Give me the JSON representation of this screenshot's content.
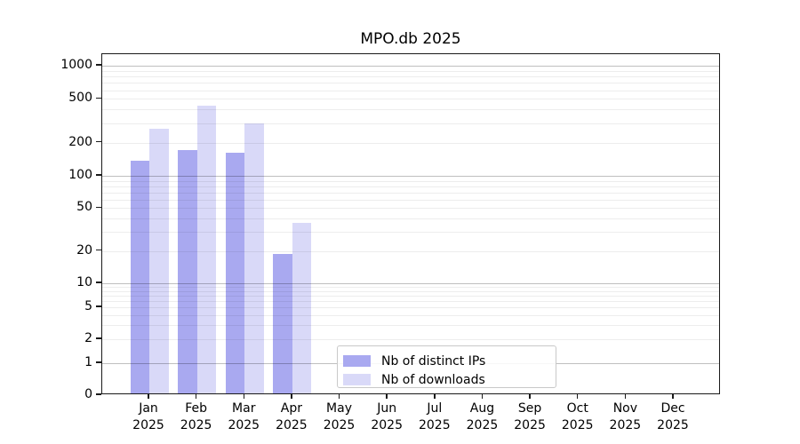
{
  "chart_data": {
    "type": "bar",
    "title": "MPO.db 2025",
    "x_months": [
      "Jan",
      "Feb",
      "Mar",
      "Apr",
      "May",
      "Jun",
      "Jul",
      "Aug",
      "Sep",
      "Oct",
      "Nov",
      "Dec"
    ],
    "x_year": "2025",
    "categories": [
      "Jan 2025",
      "Feb 2025",
      "Mar 2025",
      "Apr 2025",
      "May 2025",
      "Jun 2025",
      "Jul 2025",
      "Aug 2025",
      "Sep 2025",
      "Oct 2025",
      "Nov 2025",
      "Dec 2025"
    ],
    "series": [
      {
        "name": "Nb of distinct IPs",
        "color": "#a9a9f0",
        "values": [
          133,
          165,
          156,
          18,
          0,
          0,
          0,
          0,
          0,
          0,
          0,
          0
        ]
      },
      {
        "name": "Nb of downloads",
        "color": "#d9d9f8",
        "values": [
          260,
          415,
          290,
          35,
          0,
          0,
          0,
          0,
          0,
          0,
          0,
          0
        ]
      }
    ],
    "yscale": "symlog",
    "ylim": [
      0,
      1000
    ],
    "y_tick_values": [
      0,
      1,
      2,
      5,
      10,
      20,
      50,
      100,
      200,
      500,
      1000
    ],
    "grid": true,
    "legend_position": "inside-bottom-center",
    "colors": {
      "bar_distinct_ips": "#a9a9f0",
      "bar_downloads": "#d9d9f8",
      "axis": "#1a1a1a",
      "grid_minor": "#ebebeb",
      "grid_major": "#bfbfbf"
    }
  }
}
